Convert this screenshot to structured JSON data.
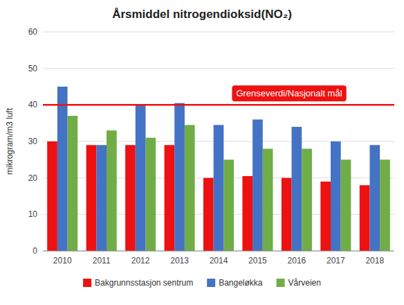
{
  "chart_data": {
    "type": "bar",
    "title": "Årsmiddel nitrogendioksid(NO₂)",
    "y_label": "mikrogram/m3 luft",
    "categories": [
      "2010",
      "2011",
      "2012",
      "2013",
      "2014",
      "2015",
      "2016",
      "2017",
      "2018"
    ],
    "series": [
      {
        "name": "Bakgrunnsstasjon sentrum",
        "color": "#EE1111",
        "values": [
          30,
          29,
          29,
          29,
          20,
          20.5,
          20,
          19,
          18
        ]
      },
      {
        "name": "Bangeløkka",
        "color": "#4472C4",
        "values": [
          45,
          29,
          40,
          40.5,
          34.5,
          36,
          34,
          30,
          29
        ]
      },
      {
        "name": "Vårveien",
        "color": "#70AD47",
        "values": [
          37,
          33,
          31,
          34.5,
          25,
          28,
          28,
          25,
          25
        ]
      }
    ],
    "annotations": [
      {
        "text": "Grenseverdi/Nasjonalt mål",
        "y": 40,
        "color": "#EE1111"
      }
    ],
    "ylim": [
      0,
      60
    ],
    "yticks": [
      0,
      10,
      20,
      30,
      40,
      50,
      60
    ],
    "grid": true,
    "legend": "bottom"
  }
}
